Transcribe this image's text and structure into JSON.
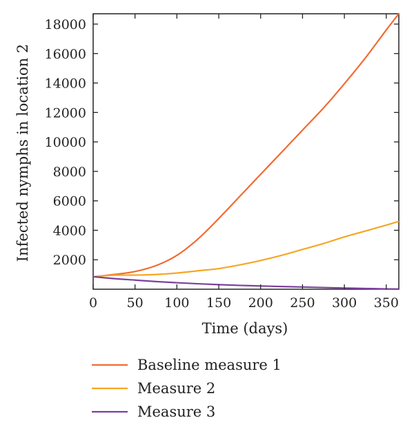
{
  "chart_data": {
    "type": "line",
    "title": "",
    "xlabel": "Time (days)",
    "ylabel": "Infected nymphs in location 2",
    "xlim": [
      0,
      365
    ],
    "ylim": [
      0,
      18700
    ],
    "xticks": [
      0,
      50,
      100,
      150,
      200,
      250,
      300,
      350
    ],
    "yticks": [
      2000,
      4000,
      6000,
      8000,
      10000,
      12000,
      14000,
      16000,
      18000
    ],
    "grid": false,
    "legend_position": "bottom",
    "series": [
      {
        "name": "Baseline measure 1",
        "color": "#f26a30",
        "x": [
          0,
          25,
          50,
          75,
          100,
          125,
          150,
          175,
          200,
          225,
          250,
          275,
          300,
          325,
          350,
          365
        ],
        "y": [
          850,
          1000,
          1200,
          1600,
          2300,
          3400,
          4800,
          6300,
          7800,
          9300,
          10800,
          12300,
          13950,
          15700,
          17600,
          18700
        ]
      },
      {
        "name": "Measure 2",
        "color": "#f6a623",
        "x": [
          0,
          25,
          50,
          75,
          100,
          125,
          150,
          175,
          200,
          225,
          250,
          275,
          300,
          325,
          350,
          365
        ],
        "y": [
          850,
          950,
          960,
          1000,
          1100,
          1250,
          1400,
          1650,
          1950,
          2300,
          2700,
          3100,
          3550,
          3950,
          4350,
          4600
        ]
      },
      {
        "name": "Measure 3",
        "color": "#7b3f9e",
        "x": [
          0,
          25,
          50,
          75,
          100,
          125,
          150,
          175,
          200,
          225,
          250,
          275,
          300,
          325,
          350,
          365
        ],
        "y": [
          850,
          720,
          620,
          520,
          440,
          370,
          310,
          260,
          220,
          180,
          150,
          115,
          80,
          50,
          20,
          10
        ]
      }
    ]
  }
}
